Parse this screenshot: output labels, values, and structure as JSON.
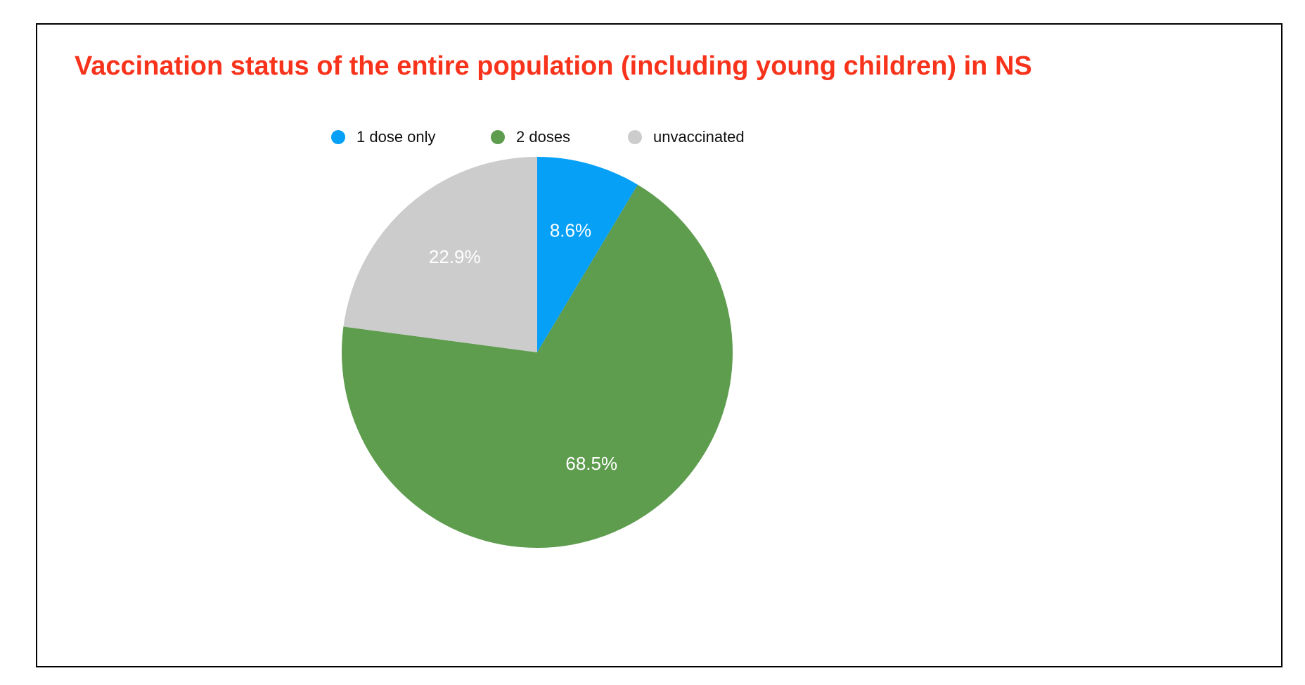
{
  "chart_data": {
    "type": "pie",
    "title": "Vaccination status of the entire population (including young children) in NS",
    "title_color": "#f7331c",
    "legend_position": "top-center",
    "categories": [
      "1 dose only",
      "2 doses",
      "unvaccinated"
    ],
    "values": [
      8.6,
      68.5,
      22.9
    ],
    "value_labels": [
      "8.6%",
      "68.5%",
      "22.9%"
    ],
    "colors": [
      "#06a0f7",
      "#5e9c4e",
      "#cccccc"
    ],
    "unit": "%"
  }
}
